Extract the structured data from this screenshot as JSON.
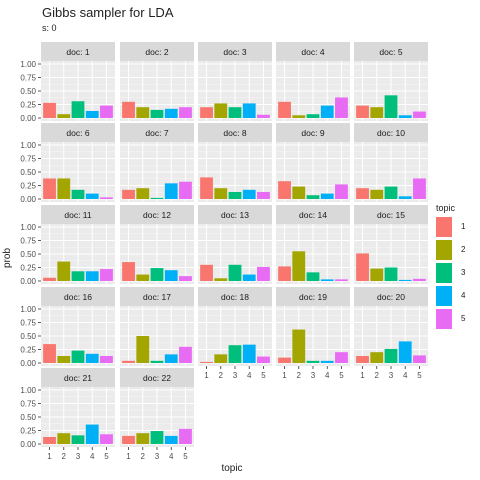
{
  "title": "Gibbs sampler for LDA",
  "subtitle": "s: 0",
  "chart_data": {
    "type": "bar",
    "layout": "facet_wrap",
    "xlabel": "topic",
    "ylabel": "prob",
    "ylim": [
      0,
      1
    ],
    "yticks": [
      "0.00",
      "0.25",
      "0.50",
      "0.75",
      "1.00"
    ],
    "categories": [
      "1",
      "2",
      "3",
      "4",
      "5"
    ],
    "legend": {
      "title": "topic",
      "placement": "right",
      "entries": [
        "1",
        "2",
        "3",
        "4",
        "5"
      ]
    },
    "colors": [
      "#F8766D",
      "#A3A500",
      "#00BF7D",
      "#00B0F6",
      "#E76BF3"
    ],
    "panels": [
      {
        "label": "doc: 1",
        "values": [
          0.28,
          0.07,
          0.31,
          0.13,
          0.23
        ]
      },
      {
        "label": "doc: 2",
        "values": [
          0.3,
          0.2,
          0.15,
          0.17,
          0.2
        ]
      },
      {
        "label": "doc: 3",
        "values": [
          0.2,
          0.27,
          0.2,
          0.27,
          0.06
        ]
      },
      {
        "label": "doc: 4",
        "values": [
          0.3,
          0.05,
          0.07,
          0.23,
          0.38
        ]
      },
      {
        "label": "doc: 5",
        "values": [
          0.23,
          0.2,
          0.42,
          0.05,
          0.12
        ]
      },
      {
        "label": "doc: 6",
        "values": [
          0.38,
          0.38,
          0.17,
          0.1,
          0.03
        ]
      },
      {
        "label": "doc: 7",
        "values": [
          0.17,
          0.2,
          0.02,
          0.29,
          0.32
        ]
      },
      {
        "label": "doc: 8",
        "values": [
          0.4,
          0.2,
          0.13,
          0.17,
          0.13
        ]
      },
      {
        "label": "doc: 9",
        "values": [
          0.33,
          0.23,
          0.07,
          0.1,
          0.27
        ]
      },
      {
        "label": "doc: 10",
        "values": [
          0.2,
          0.17,
          0.23,
          0.05,
          0.38
        ]
      },
      {
        "label": "doc: 11",
        "values": [
          0.06,
          0.36,
          0.18,
          0.18,
          0.22
        ]
      },
      {
        "label": "doc: 12",
        "values": [
          0.35,
          0.12,
          0.24,
          0.2,
          0.09
        ]
      },
      {
        "label": "doc: 13",
        "values": [
          0.3,
          0.05,
          0.3,
          0.12,
          0.26
        ]
      },
      {
        "label": "doc: 14",
        "values": [
          0.27,
          0.55,
          0.16,
          0.03,
          0.03
        ]
      },
      {
        "label": "doc: 15",
        "values": [
          0.51,
          0.23,
          0.25,
          0.02,
          0.04
        ]
      },
      {
        "label": "doc: 16",
        "values": [
          0.35,
          0.13,
          0.23,
          0.17,
          0.13
        ]
      },
      {
        "label": "doc: 17",
        "values": [
          0.04,
          0.5,
          0.04,
          0.16,
          0.3
        ]
      },
      {
        "label": "doc: 18",
        "values": [
          0.02,
          0.16,
          0.33,
          0.34,
          0.12
        ]
      },
      {
        "label": "doc: 19",
        "values": [
          0.1,
          0.62,
          0.04,
          0.04,
          0.2
        ]
      },
      {
        "label": "doc: 20",
        "values": [
          0.13,
          0.2,
          0.26,
          0.4,
          0.14
        ]
      },
      {
        "label": "doc: 21",
        "values": [
          0.13,
          0.2,
          0.16,
          0.36,
          0.18
        ]
      },
      {
        "label": "doc: 22",
        "values": [
          0.15,
          0.2,
          0.24,
          0.15,
          0.28
        ]
      }
    ]
  }
}
